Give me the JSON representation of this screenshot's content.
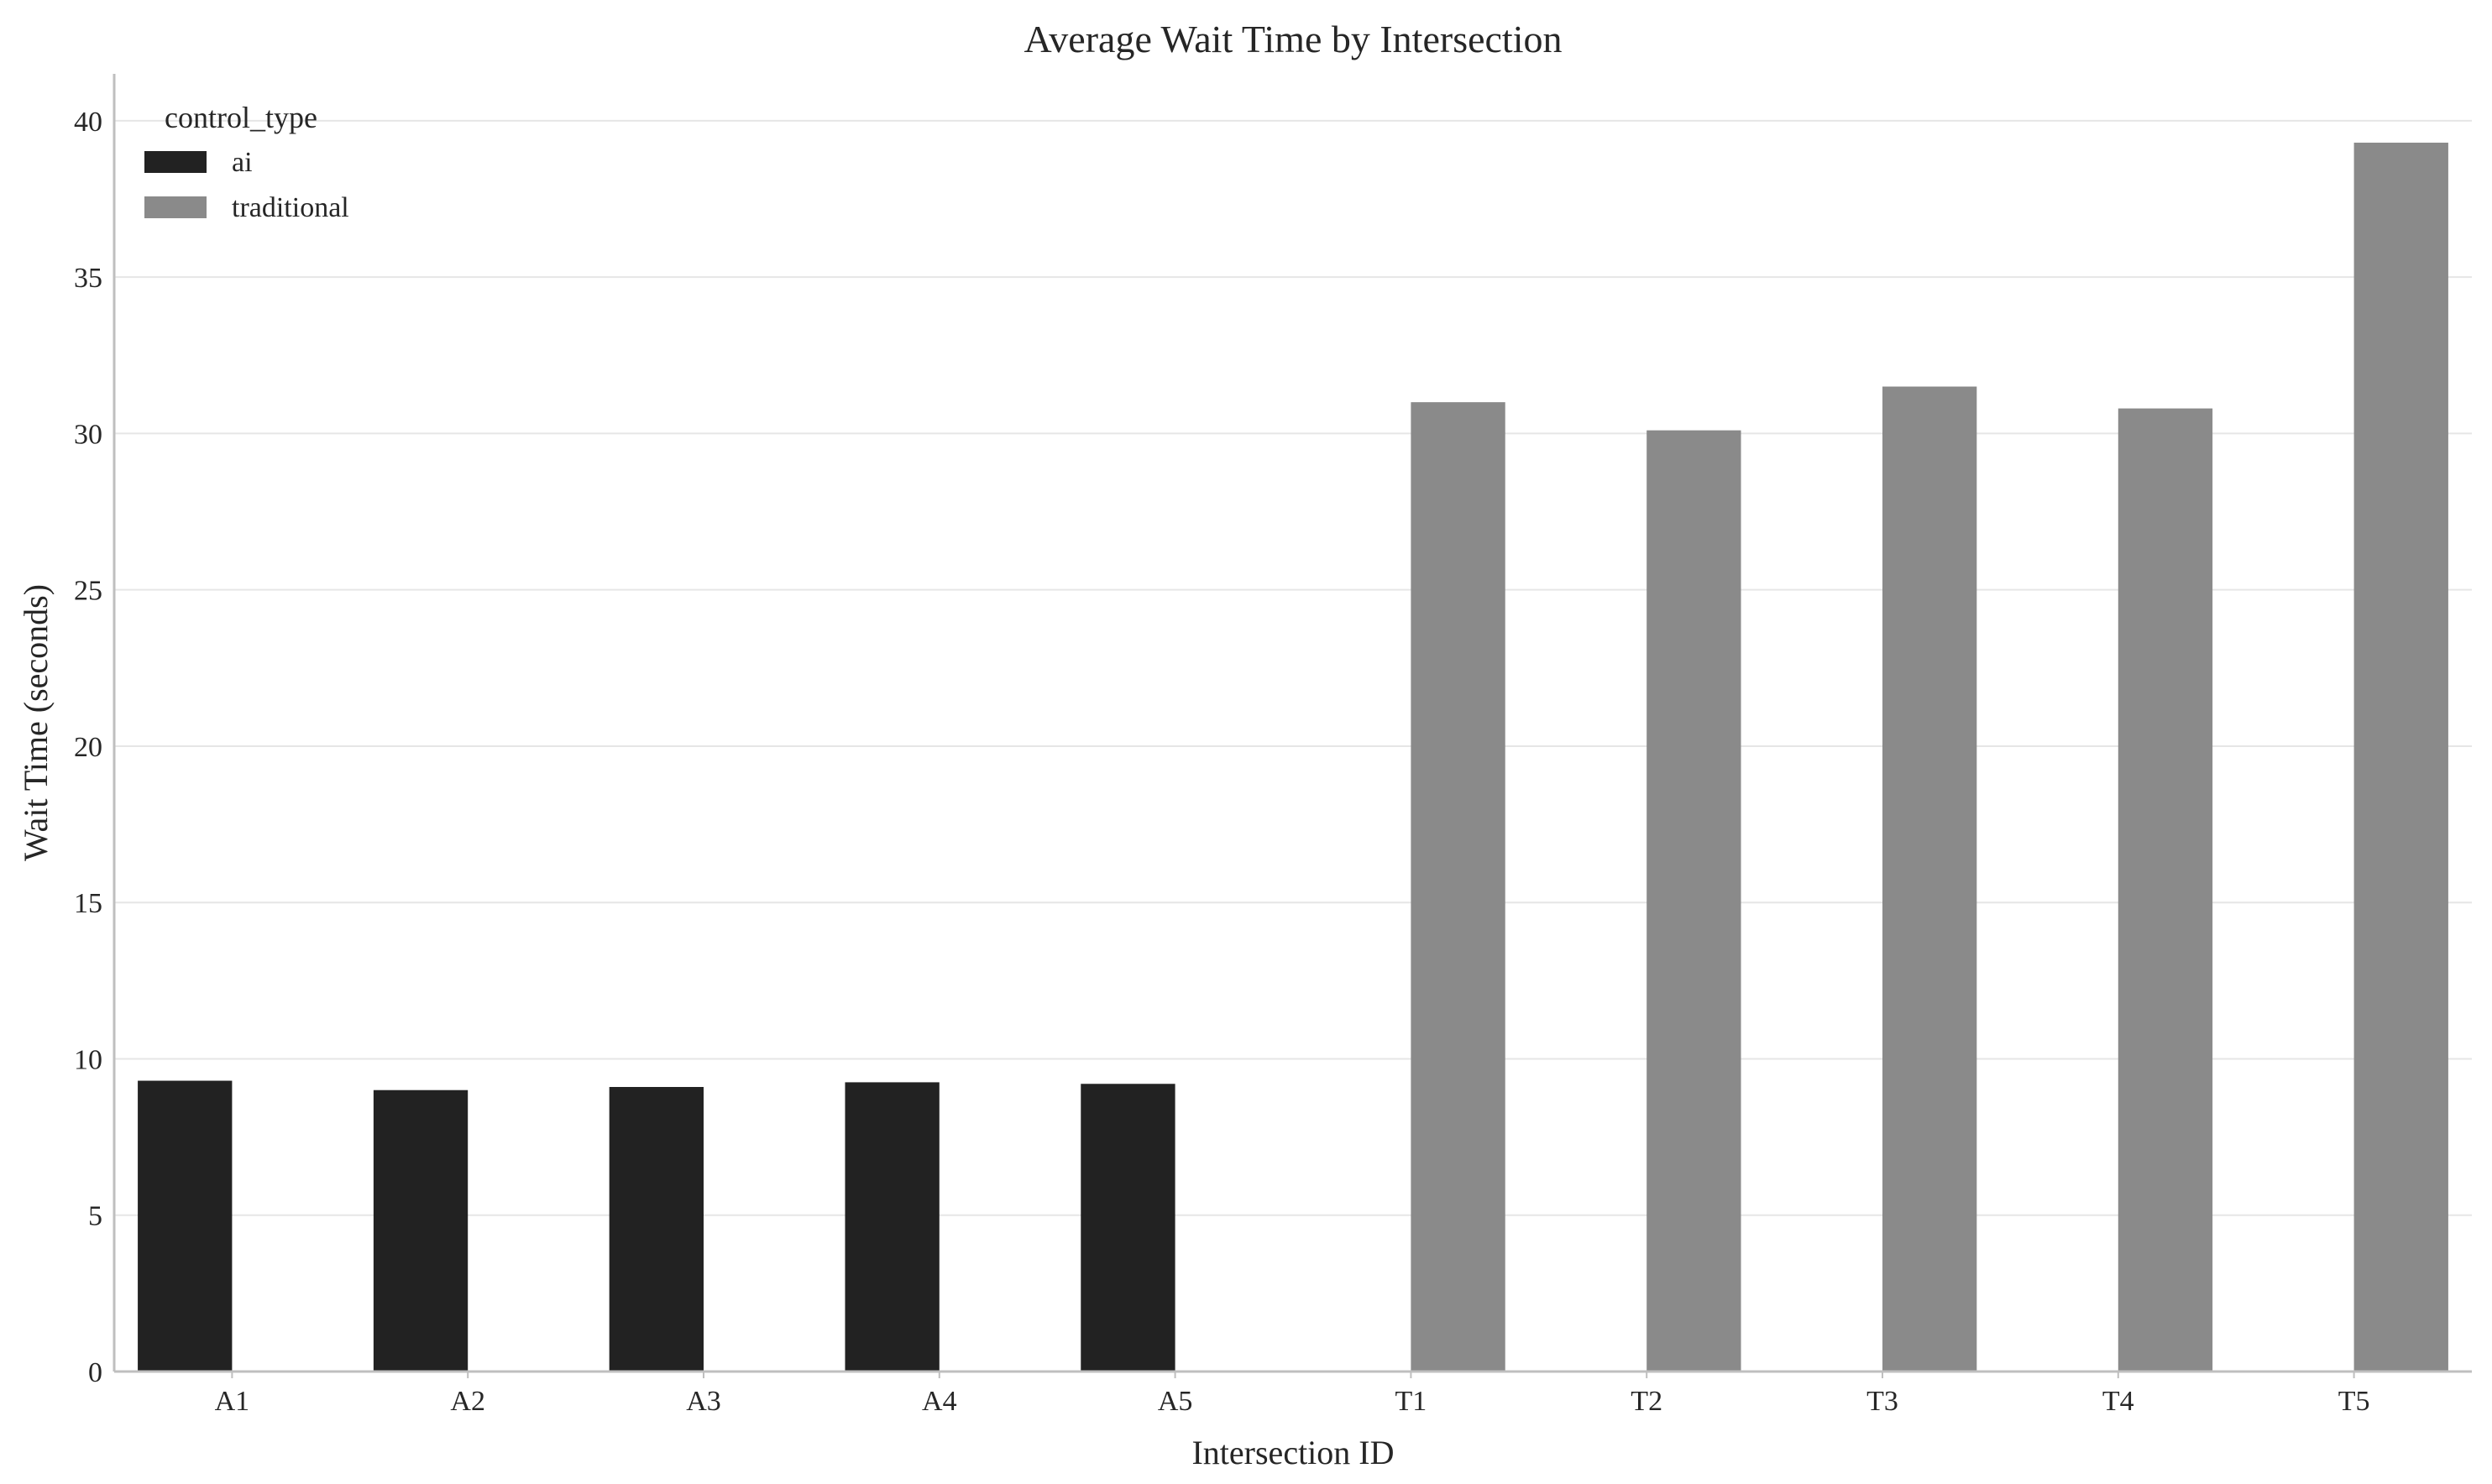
{
  "chart_data": {
    "type": "bar",
    "title": "Average Wait Time by Intersection",
    "xlabel": "Intersection ID",
    "ylabel": "Wait Time (seconds)",
    "ylim": [
      0,
      41.5
    ],
    "yticks": [
      0,
      5,
      10,
      15,
      20,
      25,
      30,
      35,
      40
    ],
    "grid": true,
    "legend": {
      "title": "control_type",
      "placement": "top-left"
    },
    "categories": [
      "A1",
      "A2",
      "A3",
      "A4",
      "A5",
      "T1",
      "T2",
      "T3",
      "T4",
      "T5"
    ],
    "series": [
      {
        "name": "ai",
        "color": "#222222",
        "values": [
          9.3,
          9.0,
          9.1,
          9.25,
          9.2,
          null,
          null,
          null,
          null,
          null
        ]
      },
      {
        "name": "traditional",
        "color": "#8a8a8a",
        "values": [
          null,
          null,
          null,
          null,
          null,
          31.0,
          30.1,
          31.5,
          30.8,
          39.3
        ]
      }
    ]
  }
}
